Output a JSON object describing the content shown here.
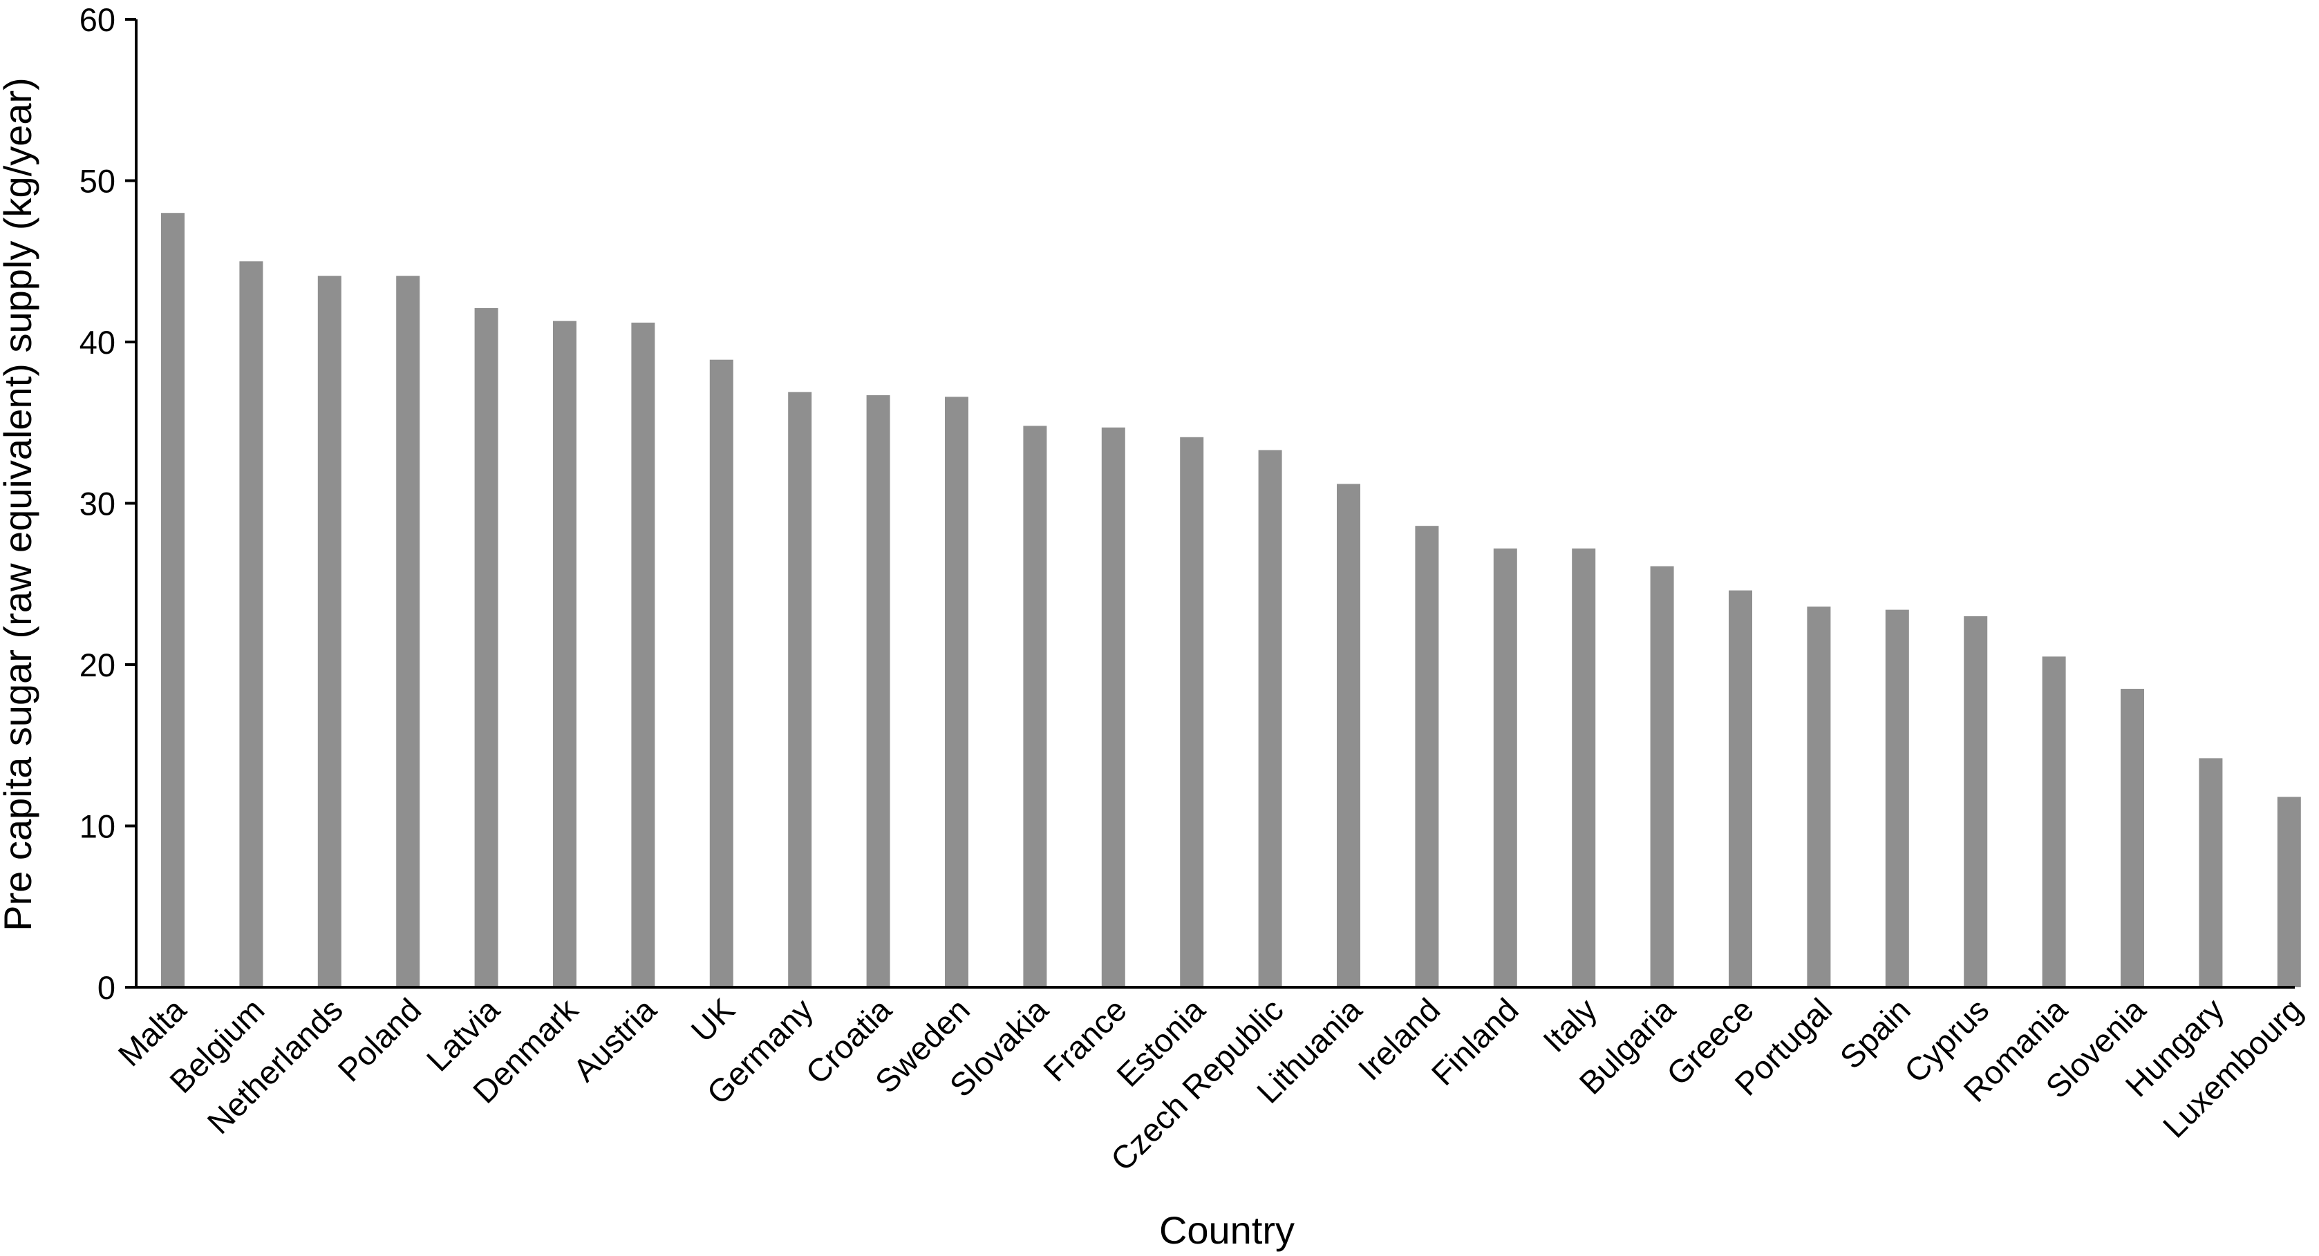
{
  "chart_data": {
    "type": "bar",
    "title": "",
    "xlabel": "Country",
    "ylabel": "Pre capita sugar (raw equivalent) supply (kg/year)",
    "ylim": [
      0,
      60
    ],
    "yticks": [
      0,
      10,
      20,
      30,
      40,
      50,
      60
    ],
    "grid": false,
    "bar_color": "#8f8f8f",
    "categories": [
      "Malta",
      "Belgium",
      "Netherlands",
      "Poland",
      "Latvia",
      "Denmark",
      "Austria",
      "UK",
      "Germany",
      "Croatia",
      "Sweden",
      "Slovakia",
      "France",
      "Estonia",
      "Czech Republic",
      "Lithuania",
      "Ireland",
      "Finland",
      "Italy",
      "Bulgaria",
      "Greece",
      "Portugal",
      "Spain",
      "Cyprus",
      "Romania",
      "Slovenia",
      "Hungary",
      "Luxembourg"
    ],
    "values": [
      48.0,
      45.0,
      44.1,
      44.1,
      42.1,
      41.3,
      41.2,
      38.9,
      36.9,
      36.7,
      36.6,
      34.8,
      34.7,
      34.1,
      33.3,
      31.2,
      28.6,
      27.2,
      27.2,
      26.1,
      24.6,
      23.6,
      23.4,
      23.0,
      20.5,
      18.5,
      14.2,
      11.8
    ]
  }
}
